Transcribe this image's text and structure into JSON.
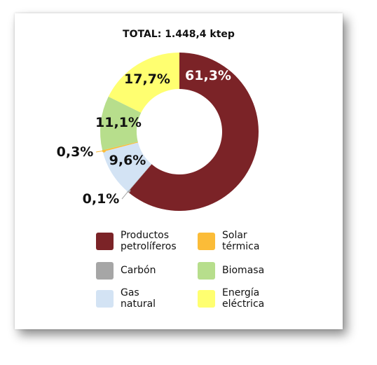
{
  "chart_data": {
    "type": "pie",
    "title": "TOTAL: 1.448,4 ktep",
    "categories": [
      "Productos petrolíferos",
      "Solar térmica",
      "Carbón",
      "Biomasa",
      "Gas natural",
      "Energía eléctrica"
    ],
    "values": [
      61.3,
      0.3,
      0.1,
      11.1,
      9.6,
      17.7
    ],
    "slices": [
      {
        "name": "Productos petrolíferos",
        "value": 61.3,
        "label": "61,3%",
        "color": "#7b2327"
      },
      {
        "name": "Carbón",
        "value": 0.1,
        "label": "0,1%",
        "color": "#a6a6a6"
      },
      {
        "name": "Gas natural",
        "value": 9.6,
        "label": "9,6%",
        "color": "#d3e3f4"
      },
      {
        "name": "Solar térmica",
        "value": 0.3,
        "label": "0,3%",
        "color": "#fbbc38"
      },
      {
        "name": "Biomasa",
        "value": 11.1,
        "label": "11,1%",
        "color": "#b7de8c"
      },
      {
        "name": "Energía eléctrica",
        "value": 17.7,
        "label": "17,7%",
        "color": "#ffff70"
      }
    ],
    "legend": {
      "placement": "bottom",
      "columns": [
        [
          {
            "line1": "Productos",
            "line2": "petrolíferos",
            "color": "#7b2327"
          },
          {
            "line1": "Carbón",
            "line2": "",
            "color": "#a6a6a6"
          },
          {
            "line1": "Gas",
            "line2": "natural",
            "color": "#d3e3f4"
          }
        ],
        [
          {
            "line1": "Solar",
            "line2": "térmica",
            "color": "#fbbc38"
          },
          {
            "line1": "Biomasa",
            "line2": "",
            "color": "#b7de8c"
          },
          {
            "line1": "Energía",
            "line2": "eléctrica",
            "color": "#ffff70"
          }
        ]
      ]
    }
  }
}
